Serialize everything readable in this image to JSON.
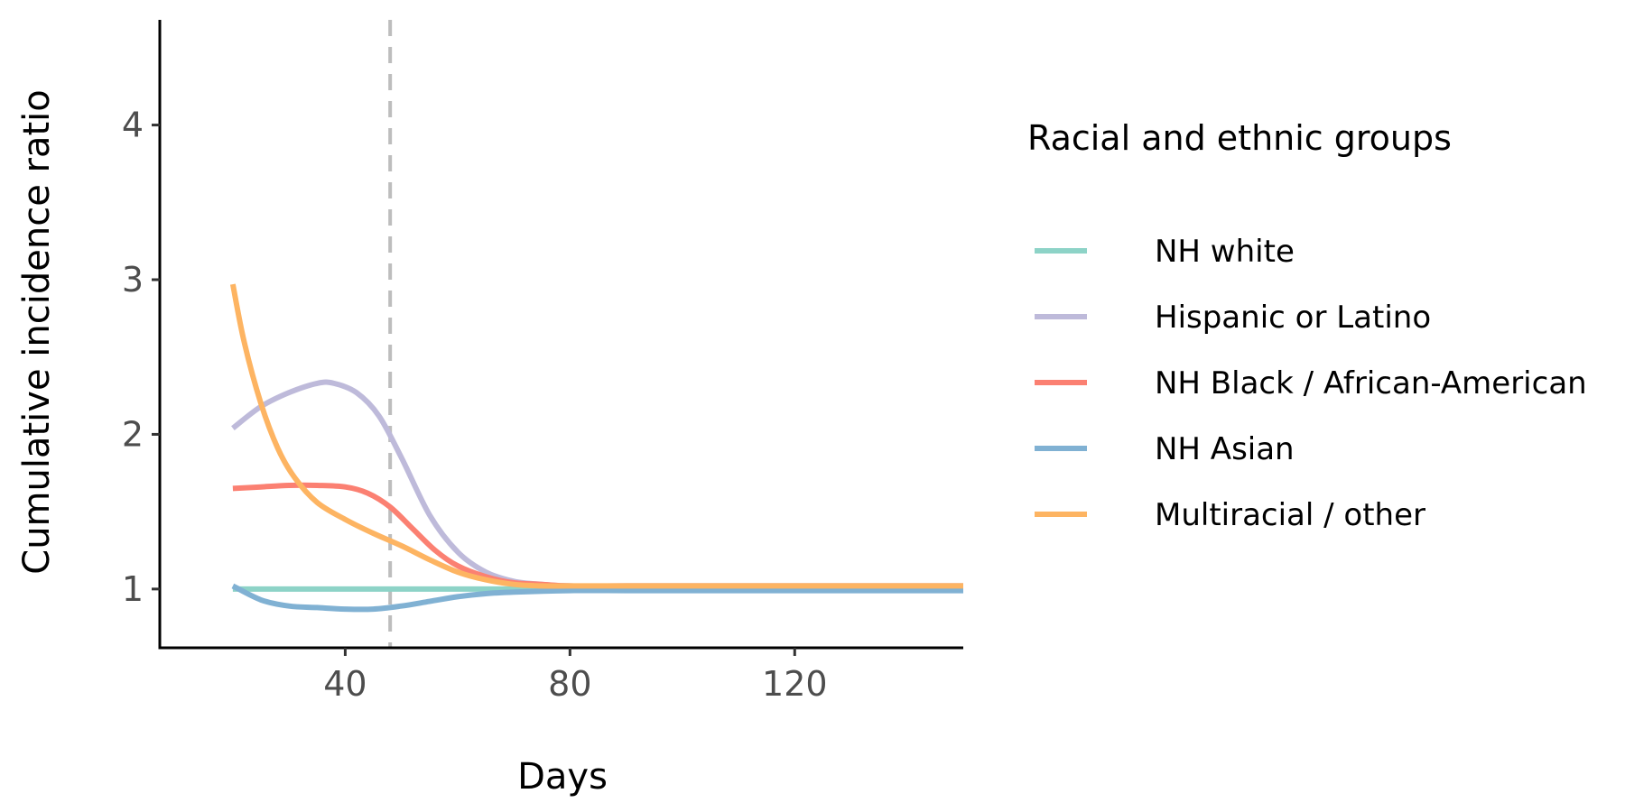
{
  "chart_data": {
    "type": "line",
    "xlabel": "Days",
    "ylabel": "Cumulative incidence ratio",
    "xlim": [
      7,
      150
    ],
    "ylim": [
      0.62,
      4.68
    ],
    "xticks": [
      40,
      80,
      120
    ],
    "yticks": [
      1,
      2,
      3,
      4
    ],
    "grid": false,
    "vline": 48,
    "legend_title": "Racial and ethnic groups",
    "legend_position": "right",
    "series": [
      {
        "name": "NH white",
        "color": "#8dd3c7",
        "x": [
          20,
          150
        ],
        "y": [
          1.0,
          1.0
        ]
      },
      {
        "name": "Hispanic or Latino",
        "color": "#bebada",
        "x": [
          20,
          25,
          30,
          35,
          38,
          42,
          46,
          50,
          55,
          60,
          65,
          70,
          75,
          80,
          90,
          100,
          120,
          150
        ],
        "y": [
          2.04,
          2.18,
          2.27,
          2.33,
          2.33,
          2.27,
          2.12,
          1.85,
          1.48,
          1.24,
          1.11,
          1.05,
          1.03,
          1.02,
          1.02,
          1.02,
          1.02,
          1.02
        ]
      },
      {
        "name": "NH Black / African-American",
        "color": "#fb8072",
        "x": [
          20,
          25,
          30,
          35,
          40,
          44,
          48,
          52,
          56,
          60,
          65,
          70,
          75,
          80,
          90,
          100,
          120,
          150
        ],
        "y": [
          1.65,
          1.66,
          1.67,
          1.67,
          1.66,
          1.62,
          1.53,
          1.39,
          1.25,
          1.15,
          1.08,
          1.04,
          1.03,
          1.02,
          1.02,
          1.02,
          1.02,
          1.02
        ]
      },
      {
        "name": "NH Asian",
        "color": "#80b1d3",
        "x": [
          20,
          25,
          30,
          35,
          40,
          45,
          50,
          55,
          60,
          65,
          70,
          80,
          90,
          100,
          120,
          150
        ],
        "y": [
          1.02,
          0.93,
          0.89,
          0.88,
          0.87,
          0.87,
          0.89,
          0.92,
          0.95,
          0.97,
          0.98,
          0.99,
          0.99,
          0.99,
          0.99,
          0.99
        ]
      },
      {
        "name": "Multiracial / other",
        "color": "#fdb462",
        "x": [
          20,
          22,
          25,
          28,
          31,
          35,
          40,
          45,
          50,
          55,
          60,
          65,
          70,
          75,
          80,
          90,
          100,
          120,
          150
        ],
        "y": [
          2.97,
          2.6,
          2.2,
          1.91,
          1.72,
          1.56,
          1.45,
          1.36,
          1.28,
          1.19,
          1.11,
          1.06,
          1.03,
          1.02,
          1.02,
          1.02,
          1.02,
          1.02,
          1.02
        ]
      }
    ]
  }
}
